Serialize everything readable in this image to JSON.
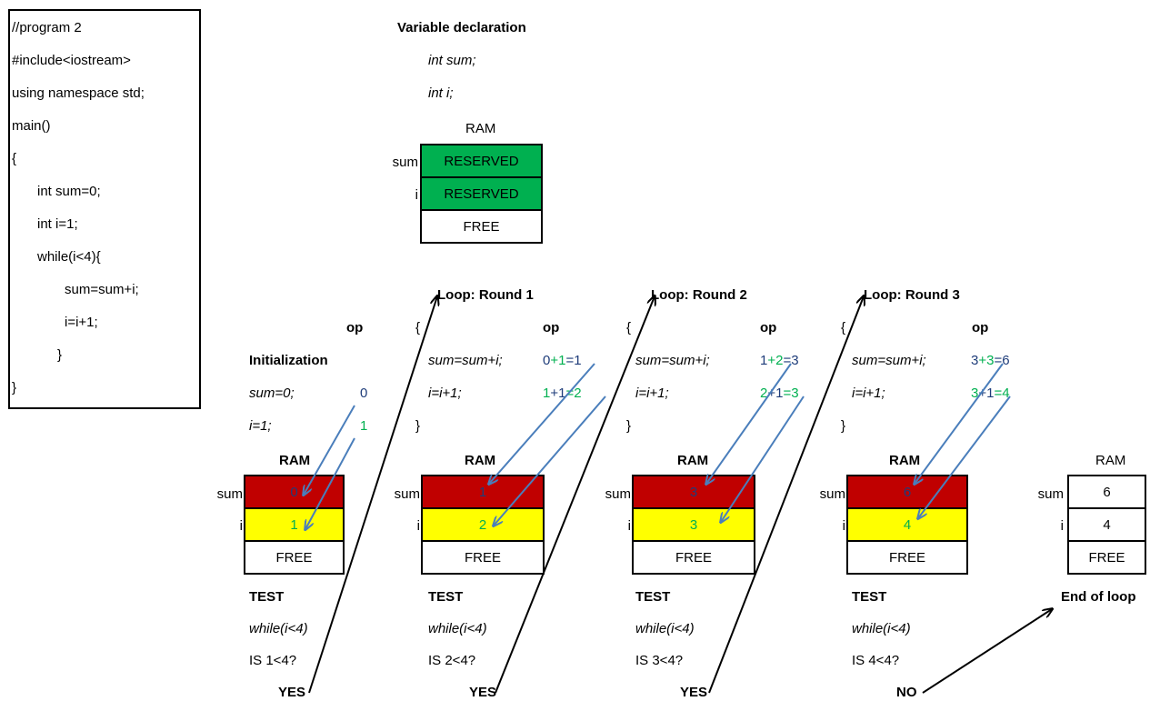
{
  "code": {
    "lines": [
      "//program 2",
      "#include<iostream>",
      "using namespace std;",
      "main()",
      "{",
      "int sum=0;",
      "int i=1;",
      "while(i<4){",
      "sum=sum+i;",
      "i=i+1;",
      "}",
      "}"
    ]
  },
  "declaration": {
    "title": "Variable declaration",
    "line1": "int sum;",
    "line2": "int i;",
    "ram_label": "RAM",
    "rows": [
      {
        "label": "sum",
        "value": "RESERVED"
      },
      {
        "label": "i",
        "value": "RESERVED"
      },
      {
        "label": "",
        "value": "FREE"
      }
    ]
  },
  "init": {
    "op_label": "op",
    "title": "Initialization",
    "line1": "sum=0;",
    "line2": "i=1;",
    "op1": "0",
    "op2": "1",
    "ram_label": "RAM",
    "sum_label": "sum",
    "i_label": "i",
    "sum_val": "0",
    "i_val": "1",
    "free": "FREE",
    "test_title": "TEST",
    "test_cond": "while(i<4)",
    "test_q": "IS 1<4?",
    "answer": "YES"
  },
  "rounds": [
    {
      "title": "Loop: Round 1",
      "brace_open": "{",
      "brace_close": "}",
      "op_label": "op",
      "line1": "sum=sum+i;",
      "line2": "i=i+1;",
      "op1_a": "0",
      "op1_b": "+1",
      "op1_c": "=1",
      "op2_a": "1",
      "op2_b": "+1",
      "op2_c": "=2",
      "ram_label": "RAM",
      "sum_label": "sum",
      "i_label": "i",
      "sum_val": "1",
      "i_val": "2",
      "free": "FREE",
      "test_title": "TEST",
      "test_cond": "while(i<4)",
      "test_q": "IS 2<4?",
      "answer": "YES"
    },
    {
      "title": "Loop: Round 2",
      "brace_open": "{",
      "brace_close": "}",
      "op_label": "op",
      "line1": "sum=sum+i;",
      "line2": "i=i+1;",
      "op1_a": "1",
      "op1_b": "+2",
      "op1_c": "=3",
      "op2_a": "2",
      "op2_b": "+1",
      "op2_c": "=3",
      "ram_label": "RAM",
      "sum_label": "sum",
      "i_label": "i",
      "sum_val": "3",
      "i_val": "3",
      "free": "FREE",
      "test_title": "TEST",
      "test_cond": "while(i<4)",
      "test_q": "IS 3<4?",
      "answer": "YES"
    },
    {
      "title": "Loop: Round 3",
      "brace_open": "{",
      "brace_close": "}",
      "op_label": "op",
      "line1": "sum=sum+i;",
      "line2": "i=i+1;",
      "op1_a": "3",
      "op1_b": "+3",
      "op1_c": "=6",
      "op2_a": "3",
      "op2_b": "+1",
      "op2_c": "=4",
      "ram_label": "RAM",
      "sum_label": "sum",
      "i_label": "i",
      "sum_val": "6",
      "i_val": "4",
      "free": "FREE",
      "test_title": "TEST",
      "test_cond": "while(i<4)",
      "test_q": "IS 4<4?",
      "answer": "NO"
    }
  ],
  "final": {
    "ram_label": "RAM",
    "sum_label": "sum",
    "i_label": "i",
    "sum_val": "6",
    "i_val": "4",
    "free": "FREE",
    "end_label": "End of loop"
  },
  "colors": {
    "reserved": "#00b050",
    "sum_cell": "#c00000",
    "i_cell": "#ffff00",
    "arrow_blue": "#4a7ebb",
    "arrow_black": "#000000"
  }
}
